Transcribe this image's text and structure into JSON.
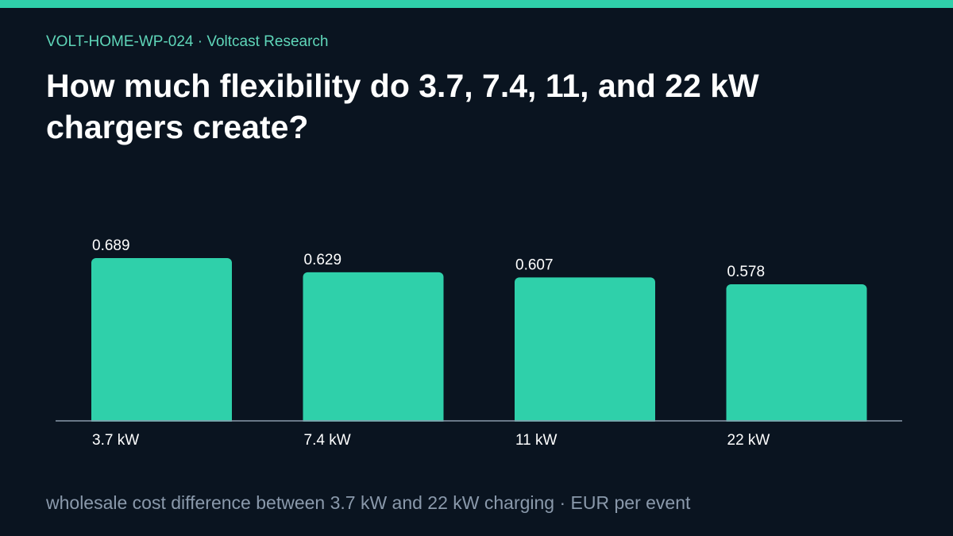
{
  "header": {
    "eyebrow": "VOLT-HOME-WP-024 · Voltcast Research",
    "title": "How much flexibility do 3.7, 7.4, 11, and 22 kW chargers create?"
  },
  "footer": {
    "note": "wholesale cost difference between 3.7 kW and 22 kW charging · EUR per event"
  },
  "colors": {
    "background": "#0a1420",
    "accent": "#2fd0aa",
    "bar": "#2fd0aa",
    "axis": "#8a99ab",
    "text_muted": "#8a99ab"
  },
  "chart_data": {
    "type": "bar",
    "categories": [
      "3.7 kW",
      "7.4 kW",
      "11 kW",
      "22 kW"
    ],
    "values": [
      0.689,
      0.629,
      0.607,
      0.578
    ],
    "value_labels": [
      "0.689",
      "0.629",
      "0.607",
      "0.578"
    ],
    "title": "How much flexibility do 3.7, 7.4, 11, and 22 kW chargers create?",
    "xlabel": "",
    "ylabel": "",
    "ylim": [
      0,
      0.689
    ],
    "grid": false,
    "legend": "none"
  }
}
